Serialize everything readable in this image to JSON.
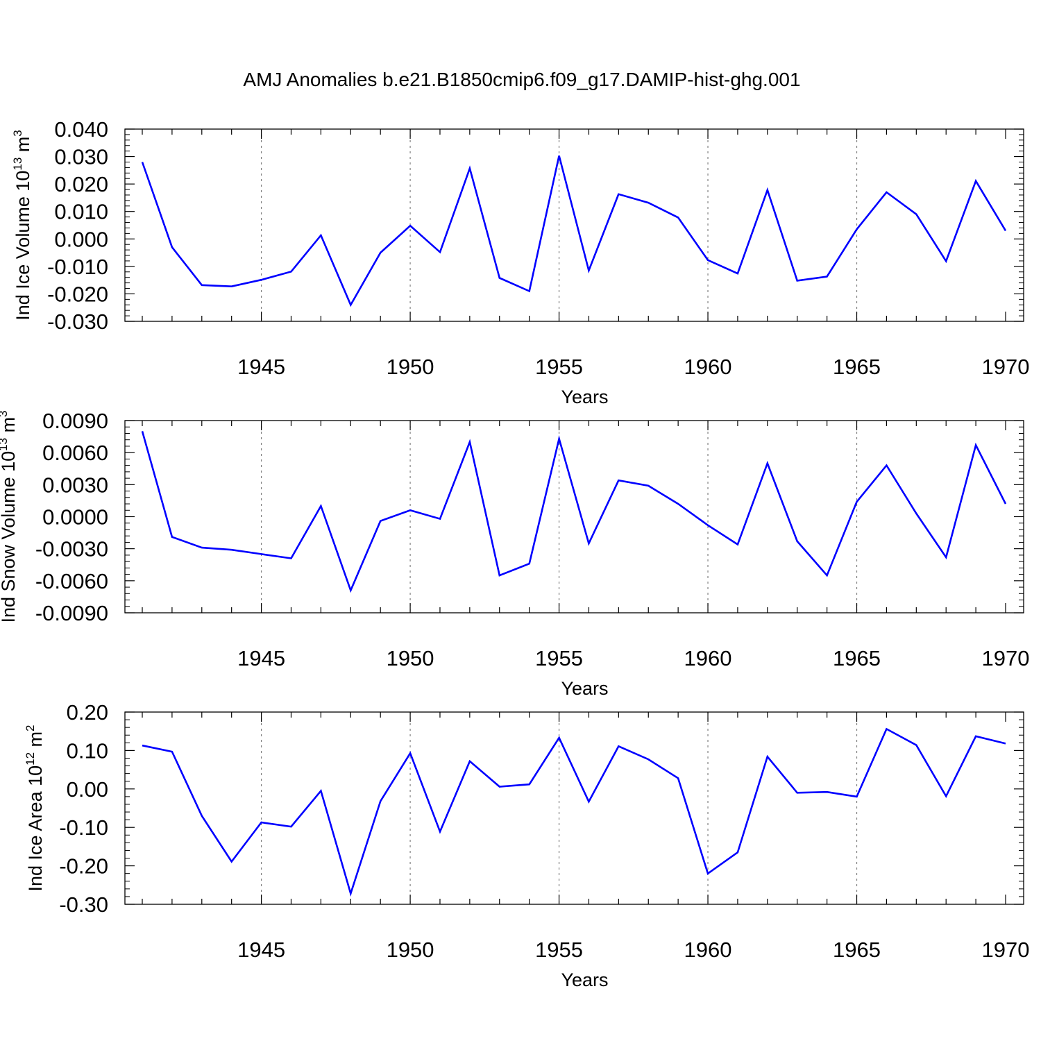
{
  "figure": {
    "title": "AMJ Anomalies b.e21.B1850cmip6.f09_g17.DAMIP-hist-ghg.001",
    "line_color": "#0000ff",
    "grid_color": "#808080"
  },
  "chart_data": [
    {
      "type": "line",
      "title": "",
      "xlabel": "Years",
      "ylabel": "Ind Ice Volume 10",
      "ylabel_exponent": "13",
      "ylabel_unit": "m",
      "ylabel_unit_exponent": "3",
      "xlim": [
        1941,
        1970
      ],
      "ylim": [
        -0.03,
        0.04
      ],
      "xticks": [
        1945,
        1950,
        1955,
        1960,
        1965,
        1970
      ],
      "xtick_labels": [
        "1945",
        "1950",
        "1955",
        "1960",
        "1965",
        "1970"
      ],
      "yticks": [
        -0.03,
        -0.02,
        -0.01,
        0.0,
        0.01,
        0.02,
        0.03,
        0.04
      ],
      "ytick_labels": [
        "-0.030",
        "-0.020",
        "-0.010",
        "0.000",
        "0.010",
        "0.020",
        "0.030",
        "0.040"
      ],
      "grid": "vertical dashed at major x ticks",
      "x": [
        1941,
        1942,
        1943,
        1944,
        1945,
        1946,
        1947,
        1948,
        1949,
        1950,
        1951,
        1952,
        1953,
        1954,
        1955,
        1956,
        1957,
        1958,
        1959,
        1960,
        1961,
        1962,
        1963,
        1964,
        1965,
        1966,
        1967,
        1968,
        1969,
        1970
      ],
      "series": [
        {
          "name": "Ind Ice Volume",
          "values": [
            0.028,
            -0.003,
            -0.0168,
            -0.0173,
            -0.0149,
            -0.0119,
            0.0013,
            -0.024,
            -0.005,
            0.0048,
            -0.0048,
            0.0257,
            -0.0142,
            -0.019,
            0.0303,
            -0.0115,
            0.0163,
            0.0132,
            0.0078,
            -0.0077,
            -0.0126,
            0.0178,
            -0.0152,
            -0.0137,
            0.0035,
            0.017,
            0.009,
            -0.0081,
            0.0211,
            0.003
          ]
        }
      ]
    },
    {
      "type": "line",
      "title": "",
      "xlabel": "Years",
      "ylabel": "Ind Snow Volume 10",
      "ylabel_exponent": "13",
      "ylabel_unit": "m",
      "ylabel_unit_exponent": "3",
      "xlim": [
        1941,
        1970
      ],
      "ylim": [
        -0.009,
        0.009
      ],
      "xticks": [
        1945,
        1950,
        1955,
        1960,
        1965,
        1970
      ],
      "xtick_labels": [
        "1945",
        "1950",
        "1955",
        "1960",
        "1965",
        "1970"
      ],
      "yticks": [
        -0.009,
        -0.006,
        -0.003,
        0.0,
        0.003,
        0.006,
        0.009
      ],
      "ytick_labels": [
        "-0.0090",
        "-0.0060",
        "-0.0030",
        "0.0000",
        "0.0030",
        "0.0060",
        "0.0090"
      ],
      "grid": "vertical dashed at major x ticks",
      "x": [
        1941,
        1942,
        1943,
        1944,
        1945,
        1946,
        1947,
        1948,
        1949,
        1950,
        1951,
        1952,
        1953,
        1954,
        1955,
        1956,
        1957,
        1958,
        1959,
        1960,
        1961,
        1962,
        1963,
        1964,
        1965,
        1966,
        1967,
        1968,
        1969,
        1970
      ],
      "series": [
        {
          "name": "Ind Snow Volume",
          "values": [
            0.008,
            -0.0019,
            -0.0029,
            -0.0031,
            -0.0035,
            -0.0039,
            0.001,
            -0.0069,
            -0.0004,
            0.0006,
            -0.0002,
            0.007,
            -0.0055,
            -0.0044,
            0.0073,
            -0.0025,
            0.0034,
            0.0029,
            0.0012,
            -0.0008,
            -0.0026,
            0.005,
            -0.0023,
            -0.0055,
            0.0014,
            0.0048,
            0.0003,
            -0.0038,
            0.0067,
            0.0012
          ]
        }
      ]
    },
    {
      "type": "line",
      "title": "",
      "xlabel": "Years",
      "ylabel": "Ind Ice Area 10",
      "ylabel_exponent": "12",
      "ylabel_unit": "m",
      "ylabel_unit_exponent": "2",
      "xlim": [
        1941,
        1970
      ],
      "ylim": [
        -0.3,
        0.2
      ],
      "xticks": [
        1945,
        1950,
        1955,
        1960,
        1965,
        1970
      ],
      "xtick_labels": [
        "1945",
        "1950",
        "1955",
        "1960",
        "1965",
        "1970"
      ],
      "yticks": [
        -0.3,
        -0.2,
        -0.1,
        0.0,
        0.1,
        0.2
      ],
      "ytick_labels": [
        "-0.30",
        "-0.20",
        "-0.10",
        "0.00",
        "0.10",
        "0.20"
      ],
      "grid": "vertical dashed at major x ticks",
      "x": [
        1941,
        1942,
        1943,
        1944,
        1945,
        1946,
        1947,
        1948,
        1949,
        1950,
        1951,
        1952,
        1953,
        1954,
        1955,
        1956,
        1957,
        1958,
        1959,
        1960,
        1961,
        1962,
        1963,
        1964,
        1965,
        1966,
        1967,
        1968,
        1969,
        1970
      ],
      "series": [
        {
          "name": "Ind Ice Area",
          "values": [
            0.113,
            0.097,
            -0.07,
            -0.189,
            -0.087,
            -0.098,
            -0.005,
            -0.272,
            -0.032,
            0.093,
            -0.111,
            0.072,
            0.006,
            0.012,
            0.133,
            -0.033,
            0.111,
            0.077,
            0.028,
            -0.22,
            -0.165,
            0.084,
            -0.01,
            -0.008,
            -0.02,
            0.156,
            0.114,
            -0.019,
            0.137,
            0.118
          ]
        }
      ]
    }
  ]
}
